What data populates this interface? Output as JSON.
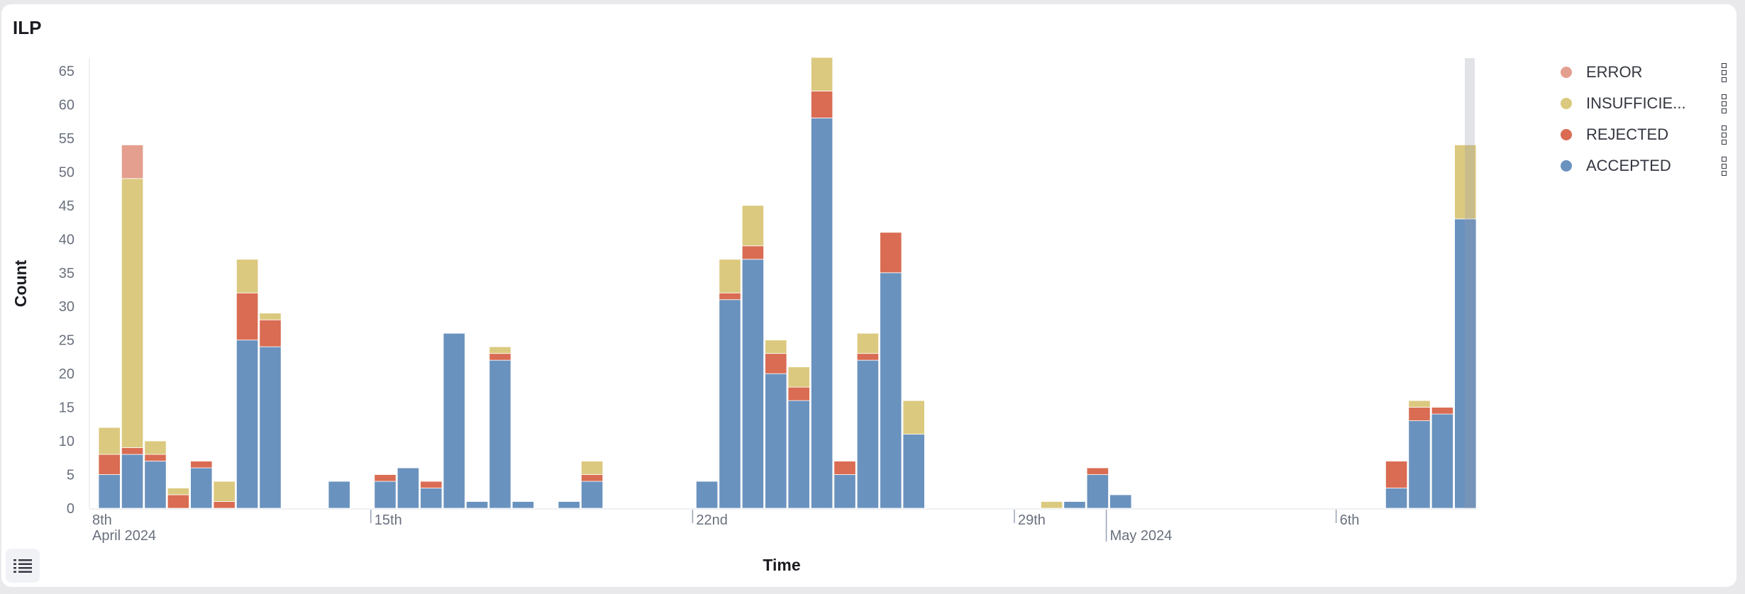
{
  "panel": {
    "title": "ILP"
  },
  "legend_button": {
    "icon": "list-icon"
  },
  "chart_data": {
    "type": "bar",
    "stacked": true,
    "title": "ILP",
    "xlabel": "Time",
    "ylabel": "Count",
    "ylim": [
      0,
      67
    ],
    "yticks": [
      0,
      5,
      10,
      15,
      20,
      25,
      30,
      35,
      40,
      45,
      50,
      55,
      60,
      65
    ],
    "xticks": [
      {
        "date": "2024-04-08",
        "label": "8th",
        "sublabel": "April 2024"
      },
      {
        "date": "2024-04-15",
        "label": "15th"
      },
      {
        "date": "2024-04-22",
        "label": "22nd"
      },
      {
        "date": "2024-04-29",
        "label": "29th"
      },
      {
        "date": "2024-05-01",
        "label": "May 2024"
      },
      {
        "date": "2024-05-06",
        "label": "6th"
      }
    ],
    "bucket_start": "2024-04-09T00:00",
    "bucket_hours": 12,
    "legend_position": "right",
    "grid": false,
    "series": [
      {
        "name": "ACCEPTED",
        "color": "#6a92be",
        "values": [
          5,
          8,
          7,
          0,
          6,
          0,
          25,
          24,
          0,
          0,
          4,
          0,
          4,
          6,
          3,
          26,
          1,
          22,
          1,
          0,
          1,
          4,
          0,
          0,
          0,
          0,
          4,
          31,
          37,
          20,
          16,
          58,
          5,
          22,
          35,
          11,
          0,
          0,
          0,
          0,
          0,
          0,
          1,
          5,
          2,
          0,
          0,
          0,
          0,
          0,
          0,
          0,
          0,
          0,
          0,
          0,
          3,
          13,
          14,
          43
        ]
      },
      {
        "name": "REJECTED",
        "color": "#d96c53",
        "values": [
          3,
          1,
          1,
          2,
          1,
          1,
          7,
          4,
          0,
          0,
          0,
          0,
          1,
          0,
          1,
          0,
          0,
          1,
          0,
          0,
          0,
          1,
          0,
          0,
          0,
          0,
          0,
          1,
          2,
          3,
          2,
          4,
          2,
          1,
          6,
          0,
          0,
          0,
          0,
          0,
          0,
          0,
          0,
          1,
          0,
          0,
          0,
          0,
          0,
          0,
          0,
          0,
          0,
          0,
          0,
          0,
          4,
          2,
          1,
          0
        ]
      },
      {
        "name": "INSUFFICIE...",
        "color": "#dbc97f",
        "values": [
          4,
          40,
          2,
          1,
          0,
          3,
          5,
          1,
          0,
          0,
          0,
          0,
          0,
          0,
          0,
          0,
          0,
          1,
          0,
          0,
          0,
          2,
          0,
          0,
          0,
          0,
          0,
          5,
          6,
          2,
          3,
          5,
          0,
          3,
          0,
          5,
          0,
          0,
          0,
          0,
          0,
          1,
          0,
          0,
          0,
          0,
          0,
          0,
          0,
          0,
          0,
          0,
          0,
          0,
          0,
          0,
          0,
          1,
          0,
          11
        ]
      },
      {
        "name": "ERROR",
        "color": "#e49f8f",
        "values": [
          0,
          5,
          0,
          0,
          0,
          0,
          0,
          0,
          0,
          0,
          0,
          0,
          0,
          0,
          0,
          0,
          0,
          0,
          0,
          0,
          0,
          0,
          0,
          0,
          0,
          0,
          0,
          0,
          0,
          0,
          0,
          0,
          0,
          0,
          0,
          0,
          0,
          0,
          0,
          0,
          0,
          0,
          0,
          0,
          0,
          0,
          0,
          0,
          0,
          0,
          0,
          0,
          0,
          0,
          0,
          0,
          0,
          0,
          0,
          0
        ]
      }
    ],
    "legend_order": [
      "ERROR",
      "INSUFFICIE...",
      "REJECTED",
      "ACCEPTED"
    ]
  }
}
